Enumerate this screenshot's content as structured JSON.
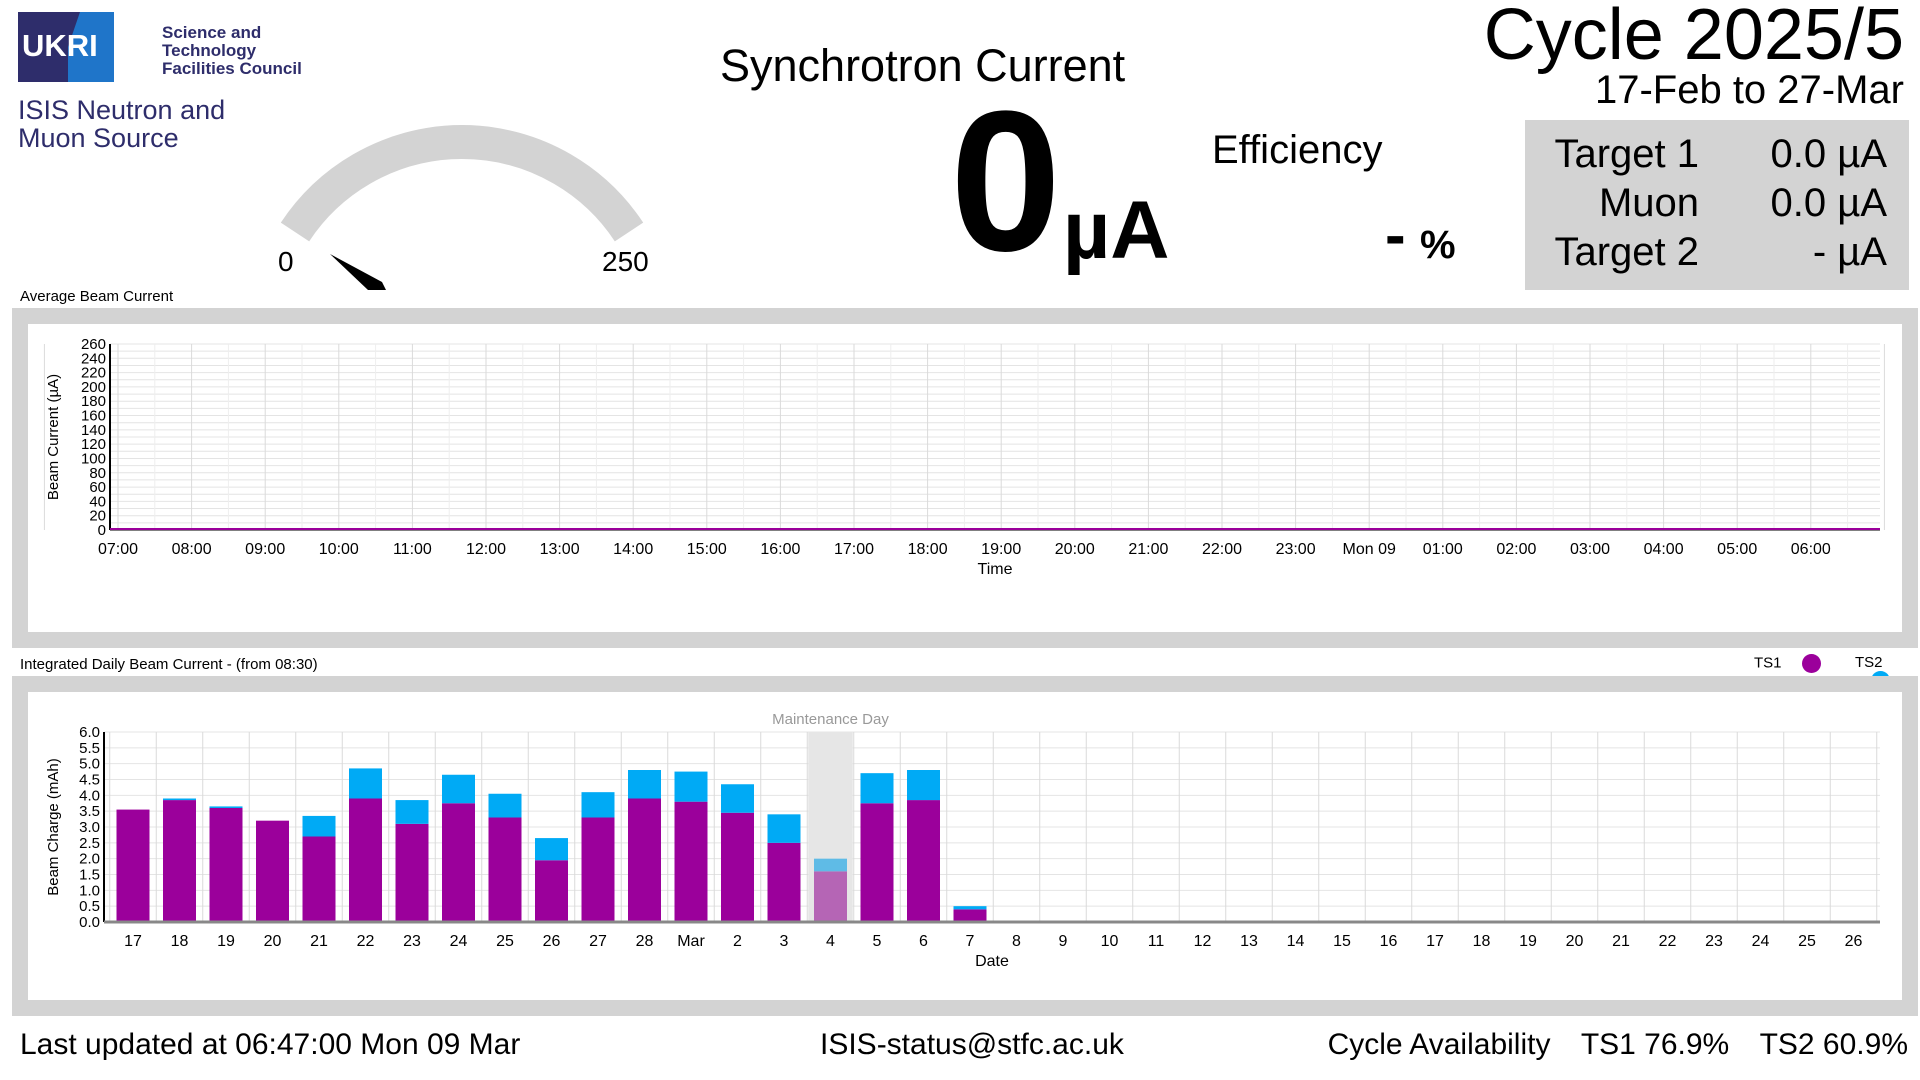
{
  "header": {
    "logo_mark": "UKRI",
    "logo_lines": [
      "Science and",
      "Technology",
      "Facilities Council"
    ],
    "org_lines": [
      "ISIS Neutron and",
      "Muon Source"
    ],
    "title": "Synchrotron Current"
  },
  "gauge": {
    "min_label": "0",
    "max_label": "250",
    "min": 0,
    "max": 250,
    "value": 0
  },
  "current": {
    "value": "0",
    "unit": "µA"
  },
  "efficiency": {
    "label": "Efficiency",
    "value": "-",
    "unit": "%"
  },
  "cycle": {
    "title": "Cycle 2025/5",
    "dates": "17-Feb to 27-Mar"
  },
  "targets": [
    {
      "name": "Target 1",
      "value": "0.0 µA"
    },
    {
      "name": "Muon",
      "value": "0.0 µA"
    },
    {
      "name": "Target 2",
      "value": "- µA"
    }
  ],
  "legend": [
    {
      "name": "TS1",
      "color": "#9b009b"
    },
    {
      "name": "TS2",
      "color": "#00aaf5"
    }
  ],
  "chart_data": [
    {
      "type": "line",
      "title": "Average Beam Current",
      "xlabel": "Time",
      "ylabel": "Beam Current (µA)",
      "ylim": [
        0,
        260
      ],
      "yticks": [
        "0",
        "20",
        "40",
        "60",
        "80",
        "100",
        "120",
        "140",
        "160",
        "180",
        "200",
        "220",
        "240",
        "260"
      ],
      "categories": [
        "07:00",
        "08:00",
        "09:00",
        "10:00",
        "11:00",
        "12:00",
        "13:00",
        "14:00",
        "15:00",
        "16:00",
        "17:00",
        "18:00",
        "19:00",
        "20:00",
        "21:00",
        "22:00",
        "23:00",
        "Mon 09",
        "01:00",
        "02:00",
        "03:00",
        "04:00",
        "05:00",
        "06:00"
      ],
      "values": [
        0,
        0,
        0,
        0,
        0,
        0,
        0,
        0,
        0,
        0,
        0,
        0,
        0,
        0,
        0,
        0,
        0,
        0,
        0,
        0,
        0,
        0,
        0,
        0
      ],
      "grid": true
    },
    {
      "type": "bar",
      "title": "Integrated Daily Beam Current - (from 08:30)",
      "xlabel": "Date",
      "ylabel": "Beam Charge (mAh)",
      "ylim": [
        0,
        6.0
      ],
      "yticks": [
        "0.0",
        "0.5",
        "1.0",
        "1.5",
        "2.0",
        "2.5",
        "3.0",
        "3.5",
        "4.0",
        "4.5",
        "5.0",
        "5.5",
        "6.0"
      ],
      "categories": [
        "17",
        "18",
        "19",
        "20",
        "21",
        "22",
        "23",
        "24",
        "25",
        "26",
        "27",
        "28",
        "Mar",
        "2",
        "3",
        "4",
        "5",
        "6",
        "7",
        "8",
        "9",
        "10",
        "11",
        "12",
        "13",
        "14",
        "15",
        "16",
        "17",
        "18",
        "19",
        "20",
        "21",
        "22",
        "23",
        "24",
        "25",
        "26"
      ],
      "series": [
        {
          "name": "TS1",
          "values": [
            3.55,
            3.85,
            3.6,
            3.2,
            2.7,
            3.9,
            3.1,
            3.75,
            3.3,
            1.95,
            3.3,
            3.9,
            3.8,
            3.45,
            2.5,
            1.6,
            3.75,
            3.85,
            0.4,
            0,
            0,
            0,
            0,
            0,
            0,
            0,
            0,
            0,
            0,
            0,
            0,
            0,
            0,
            0,
            0,
            0,
            0,
            0
          ]
        },
        {
          "name": "TS2",
          "values": [
            0,
            0.05,
            0.05,
            0,
            0.65,
            0.95,
            0.75,
            0.9,
            0.75,
            0.7,
            0.8,
            0.9,
            0.95,
            0.9,
            0.9,
            0.4,
            0.95,
            0.95,
            0.1,
            0,
            0,
            0,
            0,
            0,
            0,
            0,
            0,
            0,
            0,
            0,
            0,
            0,
            0,
            0,
            0,
            0,
            0,
            0
          ]
        }
      ],
      "annotations": [
        {
          "category": "4",
          "text": "Maintenance Day"
        }
      ],
      "grid": true
    }
  ],
  "footer": {
    "last_updated": "Last updated at 06:47:00 Mon 09 Mar",
    "email": "ISIS-status@stfc.ac.uk",
    "availability_label": "Cycle Availability",
    "ts1": "TS1 76.9%",
    "ts2": "TS2 60.9%"
  }
}
